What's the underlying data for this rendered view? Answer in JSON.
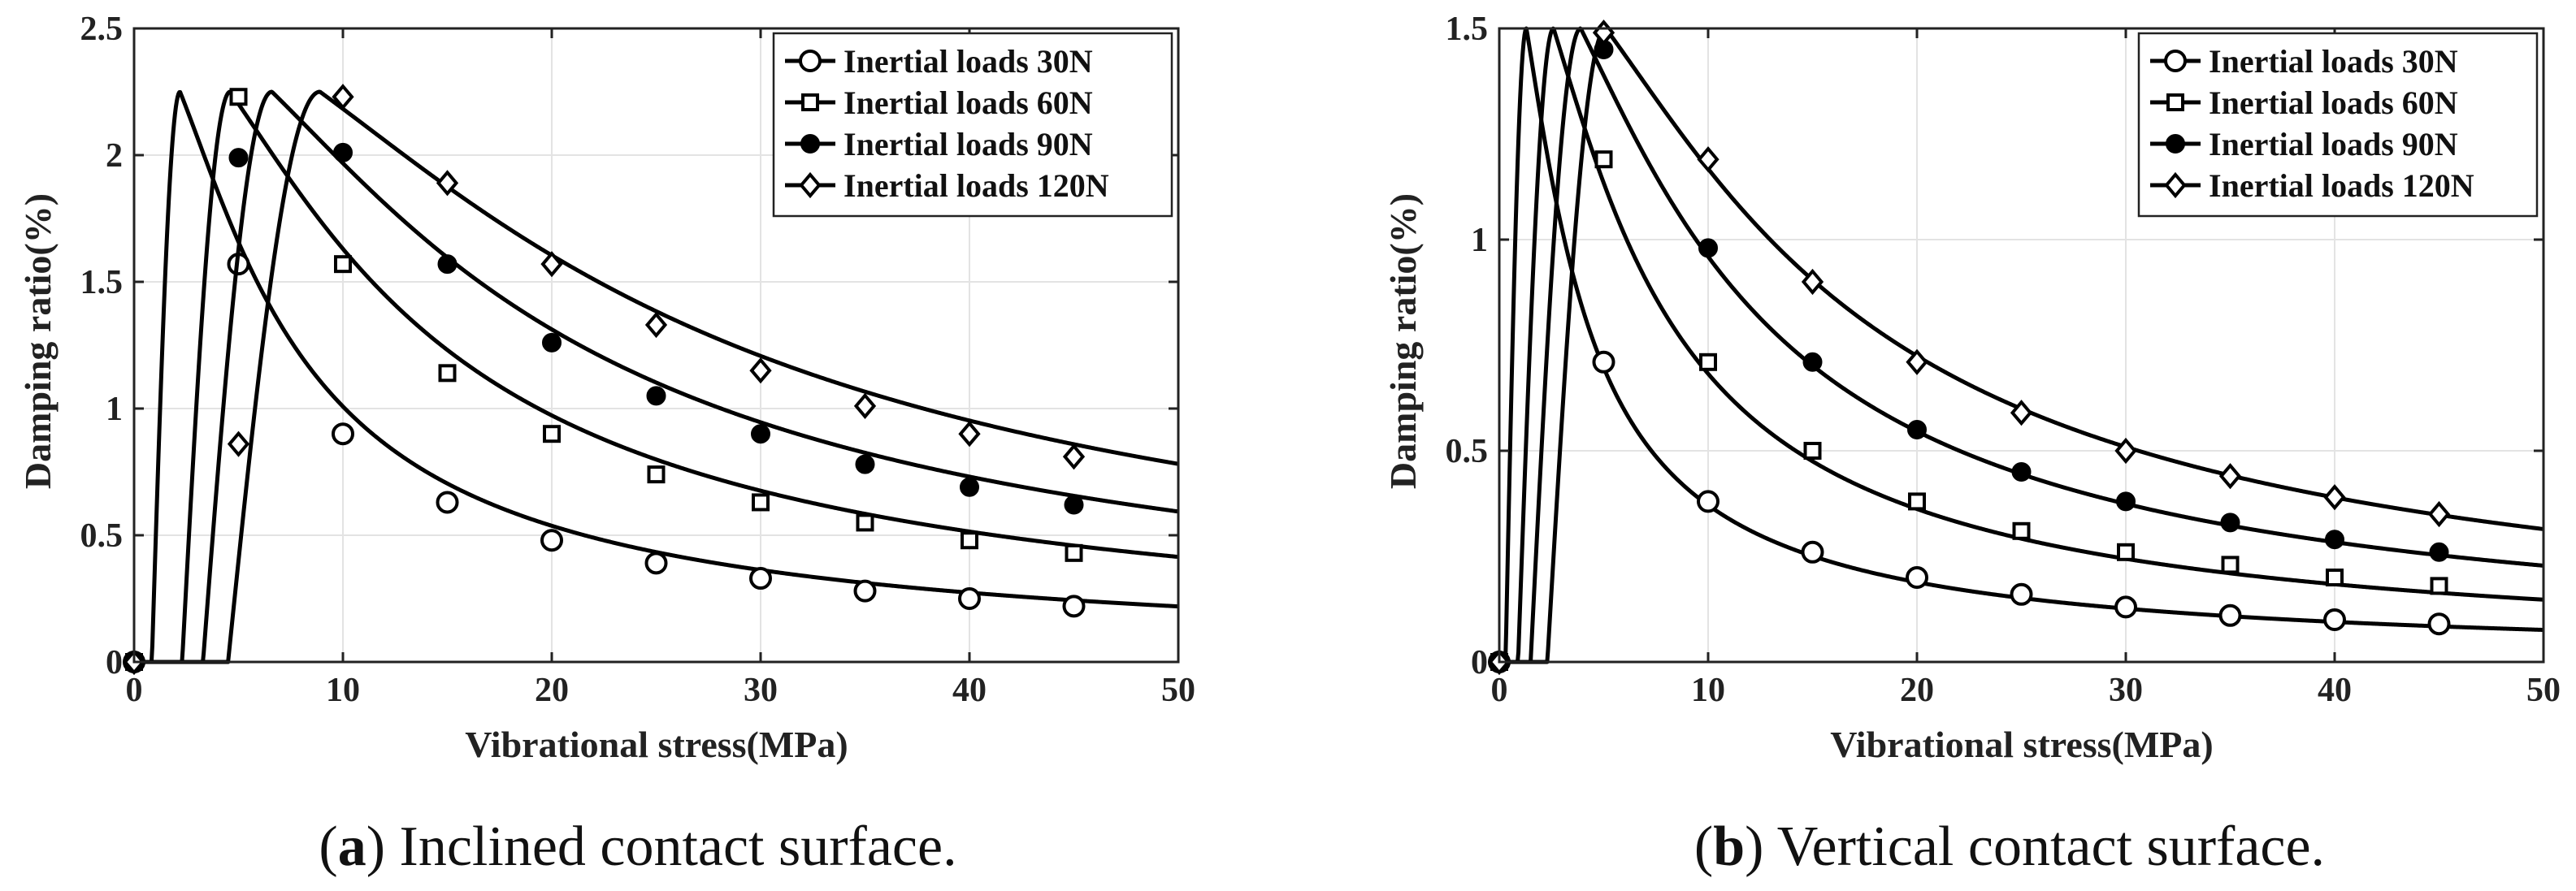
{
  "chart_data": [
    {
      "type": "line",
      "panel_label": "a",
      "caption": "Inclined contact surface.",
      "xlabel": "Vibrational stress(MPa)",
      "ylabel": "Damping ratio(%)",
      "xlim": [
        0,
        50
      ],
      "ylim": [
        0,
        2.5
      ],
      "x_ticks": [
        0,
        10,
        20,
        30,
        40,
        50
      ],
      "x_tick_labels": [
        "0",
        "10",
        "20",
        "30",
        "40",
        "50"
      ],
      "y_ticks": [
        0,
        0.5,
        1,
        1.5,
        2,
        2.5
      ],
      "y_tick_labels": [
        "0",
        "0.5",
        "1",
        "1.5",
        "2",
        "2.5"
      ],
      "grid": true,
      "legend_position": "top-right",
      "series": [
        {
          "name": "Inertial loads 30N",
          "marker": "circle",
          "onset": 0.85,
          "peak_x": 2.2,
          "peak_y": 2.25,
          "tail_k": 11.0,
          "marker_x": [
            0,
            5,
            10,
            15,
            20,
            25,
            30,
            35,
            40,
            45
          ],
          "marker_y": [
            0,
            1.57,
            0.9,
            0.63,
            0.48,
            0.39,
            0.33,
            0.28,
            0.25,
            0.22
          ]
        },
        {
          "name": "Inertial loads 60N",
          "marker": "square",
          "onset": 2.3,
          "peak_x": 4.6,
          "peak_y": 2.25,
          "tail_k": 21.0,
          "marker_x": [
            0,
            5,
            10,
            15,
            20,
            25,
            30,
            35,
            40,
            45
          ],
          "marker_y": [
            0,
            2.23,
            1.57,
            1.14,
            0.9,
            0.74,
            0.63,
            0.55,
            0.48,
            0.43
          ]
        },
        {
          "name": "Inertial loads 90N",
          "marker": "filled-circle",
          "onset": 3.3,
          "peak_x": 6.6,
          "peak_y": 2.25,
          "tail_k": 30.5,
          "marker_x": [
            0,
            5,
            10,
            15,
            20,
            25,
            30,
            35,
            40,
            45
          ],
          "marker_y": [
            0,
            1.99,
            2.01,
            1.57,
            1.26,
            1.05,
            0.9,
            0.78,
            0.69,
            0.62
          ]
        },
        {
          "name": "Inertial loads 120N",
          "marker": "diamond",
          "onset": 4.5,
          "peak_x": 8.9,
          "peak_y": 2.25,
          "tail_k": 41.0,
          "marker_x": [
            0,
            5,
            10,
            15,
            20,
            25,
            30,
            35,
            40,
            45
          ],
          "marker_y": [
            0,
            0.86,
            2.23,
            1.89,
            1.57,
            1.33,
            1.15,
            1.01,
            0.9,
            0.81
          ]
        }
      ]
    },
    {
      "type": "line",
      "panel_label": "b",
      "caption": "Vertical contact surface.",
      "xlabel": "Vibrational stress(MPa)",
      "ylabel": "Damping ratio(%)",
      "xlim": [
        0,
        50
      ],
      "ylim": [
        0,
        1.5
      ],
      "x_ticks": [
        0,
        10,
        20,
        30,
        40,
        50
      ],
      "x_tick_labels": [
        "0",
        "10",
        "20",
        "30",
        "40",
        "50"
      ],
      "y_ticks": [
        0,
        0.5,
        1,
        1.5
      ],
      "y_tick_labels": [
        "0",
        "0.5",
        "1",
        "1.5"
      ],
      "grid": true,
      "legend_position": "top-right",
      "series": [
        {
          "name": "Inertial loads 30N",
          "marker": "circle",
          "onset": 0.3,
          "peak_x": 1.3,
          "peak_y": 1.5,
          "tail_k": 3.8,
          "marker_x": [
            0,
            5,
            10,
            15,
            20,
            25,
            30,
            35,
            40,
            45
          ],
          "marker_y": [
            0,
            0.71,
            0.38,
            0.26,
            0.2,
            0.16,
            0.13,
            0.11,
            0.1,
            0.09
          ]
        },
        {
          "name": "Inertial loads 60N",
          "marker": "square",
          "onset": 0.9,
          "peak_x": 2.6,
          "peak_y": 1.5,
          "tail_k": 7.4,
          "marker_x": [
            0,
            5,
            10,
            15,
            20,
            25,
            30,
            35,
            40,
            45
          ],
          "marker_y": [
            0,
            1.19,
            0.71,
            0.5,
            0.38,
            0.31,
            0.26,
            0.23,
            0.2,
            0.18
          ]
        },
        {
          "name": "Inertial loads 90N",
          "marker": "filled-circle",
          "onset": 1.5,
          "peak_x": 3.9,
          "peak_y": 1.5,
          "tail_k": 11.5,
          "marker_x": [
            0,
            5,
            10,
            15,
            20,
            25,
            30,
            35,
            40,
            45
          ],
          "marker_y": [
            0,
            1.45,
            0.98,
            0.71,
            0.55,
            0.45,
            0.38,
            0.33,
            0.29,
            0.26
          ]
        },
        {
          "name": "Inertial loads 120N",
          "marker": "diamond",
          "onset": 2.3,
          "peak_x": 5.1,
          "peak_y": 1.5,
          "tail_k": 16.0,
          "marker_x": [
            0,
            5,
            10,
            15,
            20,
            25,
            30,
            35,
            40,
            45
          ],
          "marker_y": [
            0,
            1.49,
            1.19,
            0.9,
            0.71,
            0.59,
            0.5,
            0.44,
            0.39,
            0.35
          ]
        }
      ]
    }
  ]
}
